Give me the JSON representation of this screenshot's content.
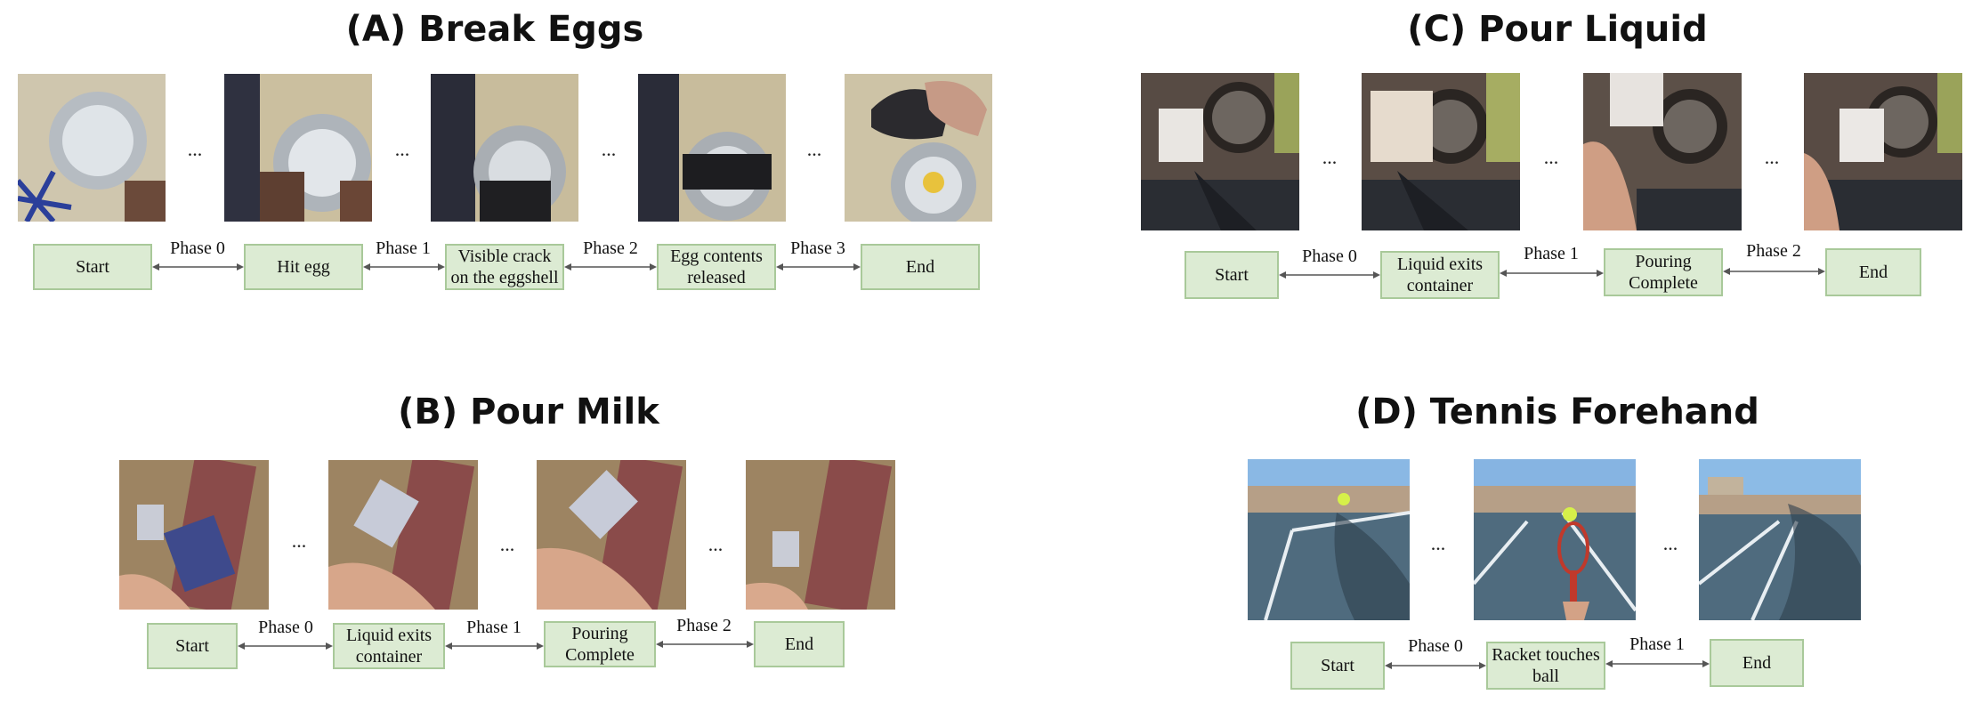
{
  "panels": {
    "A": {
      "title": "(A) Break Eggs",
      "dots": "...",
      "stages": [
        "Start",
        "Hit egg",
        "Visible crack on the eggshell",
        "Egg contents released",
        "End"
      ],
      "phases": [
        "Phase 0",
        "Phase 1",
        "Phase 2",
        "Phase 3"
      ]
    },
    "B": {
      "title": "(B) Pour Milk",
      "dots": "...",
      "stages": [
        "Start",
        "Liquid exits container",
        "Pouring Complete",
        "End"
      ],
      "phases": [
        "Phase 0",
        "Phase 1",
        "Phase 2"
      ]
    },
    "C": {
      "title": "(C) Pour Liquid",
      "dots": "...",
      "stages": [
        "Start",
        "Liquid exits container",
        "Pouring Complete",
        "End"
      ],
      "phases": [
        "Phase 0",
        "Phase 1",
        "Phase 2"
      ]
    },
    "D": {
      "title": "(D) Tennis Forehand",
      "dots": "...",
      "stages": [
        "Start",
        "Racket touches ball",
        "End"
      ],
      "phases": [
        "Phase 0",
        "Phase 1"
      ]
    }
  },
  "colors": {
    "box_fill": "#dcebd3",
    "box_border": "#a9c99a",
    "arrow": "#555555"
  }
}
